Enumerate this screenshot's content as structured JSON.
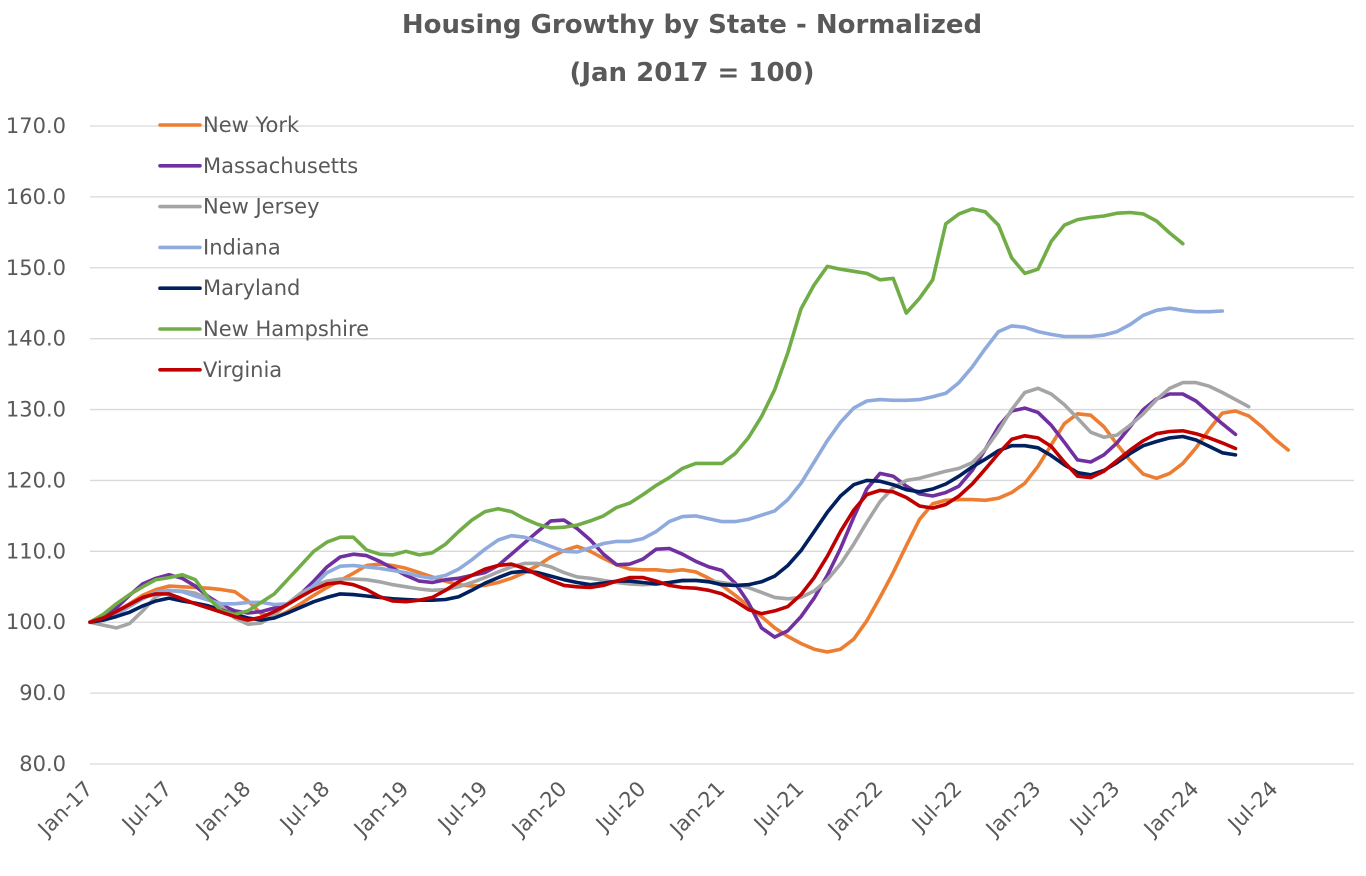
{
  "chart_data": {
    "type": "line",
    "title": "Housing Growthy by State - Normalized",
    "subtitle": "(Jan 2017 = 100)",
    "xlabel": "",
    "ylabel": "",
    "ylim": [
      80,
      170
    ],
    "xlim": [
      "2017-01",
      "2025-01"
    ],
    "grid": true,
    "legend_position": "top-left",
    "yticks": [
      "80.0",
      "90.0",
      "100.0",
      "110.0",
      "120.0",
      "130.0",
      "140.0",
      "150.0",
      "160.0",
      "170.0"
    ],
    "xticks": [
      "Jan-17",
      "Jul-17",
      "Jan-18",
      "Jul-18",
      "Jan-19",
      "Jul-19",
      "Jan-20",
      "Jul-20",
      "Jan-21",
      "Jul-21",
      "Jan-22",
      "Jul-22",
      "Jan-23",
      "Jul-23",
      "Jan-24",
      "Jul-24"
    ],
    "x_start": "2017-01",
    "x_step": "month",
    "series": [
      {
        "name": "New York",
        "color": "#ed7d31",
        "values": [
          100.0,
          100.6,
          101.5,
          102.6,
          103.8,
          104.6,
          105.1,
          105.0,
          104.9,
          104.8,
          104.6,
          104.3,
          103.0,
          101.2,
          100.6,
          101.5,
          102.6,
          103.8,
          104.9,
          105.9,
          106.9,
          108.0,
          108.2,
          108.0,
          107.6,
          107.0,
          106.4,
          105.8,
          105.3,
          105.1,
          105.2,
          105.6,
          106.2,
          107.0,
          108.0,
          109.2,
          110.1,
          110.7,
          110.0,
          109.0,
          108.1,
          107.5,
          107.4,
          107.4,
          107.2,
          107.4,
          107.1,
          106.2,
          105.2,
          103.8,
          102.3,
          100.8,
          99.2,
          98.0,
          97.0,
          96.2,
          95.8,
          96.2,
          97.6,
          100.2,
          103.5,
          107.0,
          110.8,
          114.5,
          116.7,
          117.2,
          117.3,
          117.3,
          117.2,
          117.5,
          118.3,
          119.6,
          122.0,
          125.0,
          128.0,
          129.4,
          129.2,
          127.6,
          125.1,
          122.8,
          120.9,
          120.3,
          121.0,
          122.4,
          124.6,
          127.2,
          129.5,
          129.8,
          129.1,
          127.6,
          125.8,
          124.3
        ]
      },
      {
        "name": "Massachusetts",
        "color": "#7030a0",
        "values": [
          100.0,
          100.8,
          102.0,
          103.8,
          105.4,
          106.2,
          106.7,
          106.2,
          105.1,
          103.6,
          102.4,
          101.6,
          101.3,
          101.5,
          102.0,
          102.6,
          104.0,
          105.8,
          107.8,
          109.2,
          109.6,
          109.4,
          108.6,
          107.6,
          106.6,
          105.8,
          105.6,
          106.0,
          106.2,
          106.6,
          107.0,
          108.0,
          109.6,
          111.2,
          112.8,
          114.3,
          114.4,
          113.2,
          111.6,
          109.6,
          108.1,
          108.2,
          108.9,
          110.3,
          110.4,
          109.6,
          108.6,
          107.8,
          107.3,
          105.5,
          102.8,
          99.2,
          97.9,
          98.8,
          100.8,
          103.4,
          106.6,
          110.4,
          114.8,
          118.8,
          121.0,
          120.6,
          119.2,
          118.1,
          117.8,
          118.3,
          119.2,
          121.4,
          124.4,
          127.6,
          129.8,
          130.2,
          129.6,
          127.8,
          125.4,
          122.9,
          122.6,
          123.6,
          125.3,
          127.6,
          130.0,
          131.5,
          132.2,
          132.2,
          131.2,
          129.6,
          128.0,
          126.5
        ]
      },
      {
        "name": "New Jersey",
        "color": "#a5a5a5",
        "values": [
          100.0,
          99.6,
          99.2,
          99.8,
          101.6,
          103.6,
          104.4,
          104.4,
          104.1,
          103.3,
          102.2,
          100.6,
          99.7,
          99.9,
          101.0,
          102.6,
          104.1,
          105.1,
          105.8,
          106.1,
          106.1,
          106.0,
          105.7,
          105.3,
          105.0,
          104.7,
          104.5,
          104.6,
          105.0,
          105.6,
          106.3,
          107.1,
          107.8,
          108.3,
          108.3,
          107.8,
          107.0,
          106.4,
          106.2,
          105.9,
          105.6,
          105.4,
          105.3,
          105.4,
          105.6,
          105.8,
          105.9,
          105.8,
          105.6,
          105.3,
          104.9,
          104.2,
          103.5,
          103.3,
          103.5,
          104.4,
          106.0,
          108.2,
          111.0,
          114.1,
          117.0,
          119.0,
          120.0,
          120.3,
          120.8,
          121.3,
          121.7,
          122.5,
          124.4,
          127.0,
          130.0,
          132.4,
          133.0,
          132.2,
          130.7,
          128.8,
          126.8,
          126.1,
          126.4,
          127.8,
          129.4,
          131.4,
          133.0,
          133.8,
          133.8,
          133.3,
          132.4,
          131.4,
          130.4
        ]
      },
      {
        "name": "Indiana",
        "color": "#8faadc",
        "values": [
          100.0,
          100.3,
          101.1,
          102.2,
          103.3,
          104.2,
          104.5,
          104.3,
          103.7,
          103.1,
          102.6,
          102.6,
          102.8,
          102.8,
          102.5,
          102.6,
          103.6,
          105.2,
          107.0,
          107.9,
          108.0,
          107.8,
          107.6,
          107.3,
          107.0,
          106.5,
          106.2,
          106.6,
          107.5,
          108.8,
          110.3,
          111.6,
          112.2,
          112.0,
          111.4,
          110.7,
          110.0,
          109.9,
          110.5,
          111.1,
          111.4,
          111.4,
          111.8,
          112.8,
          114.2,
          114.9,
          115.0,
          114.6,
          114.2,
          114.2,
          114.5,
          115.1,
          115.7,
          117.3,
          119.6,
          122.6,
          125.6,
          128.2,
          130.2,
          131.2,
          131.4,
          131.3,
          131.3,
          131.4,
          131.8,
          132.3,
          133.8,
          136.0,
          138.6,
          141.0,
          141.8,
          141.6,
          141.0,
          140.6,
          140.3,
          140.3,
          140.3,
          140.5,
          141.0,
          142.0,
          143.3,
          144.0,
          144.3,
          144.0,
          143.8,
          143.8,
          143.9
        ]
      },
      {
        "name": "Maryland",
        "color": "#002060",
        "values": [
          100.0,
          100.3,
          100.8,
          101.4,
          102.3,
          103.0,
          103.4,
          103.0,
          102.7,
          102.3,
          101.7,
          101.1,
          100.6,
          100.3,
          100.6,
          101.3,
          102.1,
          102.9,
          103.5,
          104.0,
          103.9,
          103.7,
          103.5,
          103.3,
          103.2,
          103.1,
          103.1,
          103.2,
          103.6,
          104.5,
          105.5,
          106.3,
          107.0,
          107.2,
          107.0,
          106.5,
          106.0,
          105.6,
          105.3,
          105.5,
          105.8,
          105.8,
          105.6,
          105.4,
          105.6,
          105.9,
          105.9,
          105.7,
          105.3,
          105.2,
          105.3,
          105.7,
          106.5,
          108.0,
          110.1,
          112.8,
          115.5,
          117.8,
          119.4,
          120.0,
          119.9,
          119.4,
          118.7,
          118.4,
          118.8,
          119.5,
          120.6,
          121.9,
          123.0,
          124.2,
          124.9,
          124.9,
          124.6,
          123.5,
          122.2,
          121.1,
          120.8,
          121.4,
          122.5,
          123.8,
          124.9,
          125.5,
          126.0,
          126.2,
          125.7,
          124.8,
          123.9,
          123.6
        ]
      },
      {
        "name": "New Hampshire",
        "color": "#70ad47",
        "values": [
          100.0,
          101.1,
          102.6,
          103.9,
          105.0,
          106.0,
          106.3,
          106.7,
          106.0,
          103.4,
          101.6,
          101.1,
          101.6,
          102.8,
          104.0,
          106.0,
          108.0,
          110.0,
          111.3,
          112.0,
          112.0,
          110.2,
          109.6,
          109.5,
          110.0,
          109.5,
          109.8,
          111.0,
          112.8,
          114.4,
          115.6,
          116.0,
          115.6,
          114.6,
          113.8,
          113.3,
          113.4,
          113.7,
          114.3,
          115.0,
          116.2,
          116.8,
          118.0,
          119.3,
          120.4,
          121.7,
          122.4,
          122.4,
          122.4,
          123.8,
          126.0,
          129.0,
          132.8,
          138.0,
          144.2,
          147.6,
          150.2,
          149.8,
          149.5,
          149.2,
          148.3,
          148.5,
          143.6,
          145.7,
          148.3,
          156.2,
          157.6,
          158.3,
          157.9,
          156.0,
          151.4,
          149.2,
          149.8,
          153.7,
          156.0,
          156.8,
          157.1,
          157.3,
          157.7,
          157.8,
          157.6,
          156.6,
          154.9,
          153.4
        ]
      },
      {
        "name": "Virginia",
        "color": "#c00000",
        "values": [
          100.0,
          100.6,
          101.5,
          102.5,
          103.5,
          104.0,
          104.0,
          103.3,
          102.6,
          102.0,
          101.4,
          100.8,
          100.3,
          100.7,
          101.5,
          102.5,
          103.6,
          104.6,
          105.4,
          105.6,
          105.3,
          104.6,
          103.6,
          103.0,
          102.9,
          103.1,
          103.5,
          104.5,
          105.7,
          106.6,
          107.5,
          108.0,
          108.2,
          107.6,
          106.7,
          105.9,
          105.2,
          105.0,
          104.9,
          105.2,
          105.8,
          106.3,
          106.3,
          105.8,
          105.2,
          104.9,
          104.8,
          104.5,
          104.0,
          103.0,
          101.8,
          101.2,
          101.6,
          102.2,
          103.9,
          106.3,
          109.3,
          112.8,
          115.8,
          118.0,
          118.6,
          118.4,
          117.6,
          116.4,
          116.1,
          116.6,
          117.8,
          119.5,
          121.6,
          123.8,
          125.8,
          126.3,
          126.0,
          124.8,
          122.6,
          120.6,
          120.4,
          121.3,
          122.8,
          124.3,
          125.6,
          126.6,
          126.9,
          127.0,
          126.6,
          126.0,
          125.3,
          124.5
        ]
      }
    ]
  }
}
